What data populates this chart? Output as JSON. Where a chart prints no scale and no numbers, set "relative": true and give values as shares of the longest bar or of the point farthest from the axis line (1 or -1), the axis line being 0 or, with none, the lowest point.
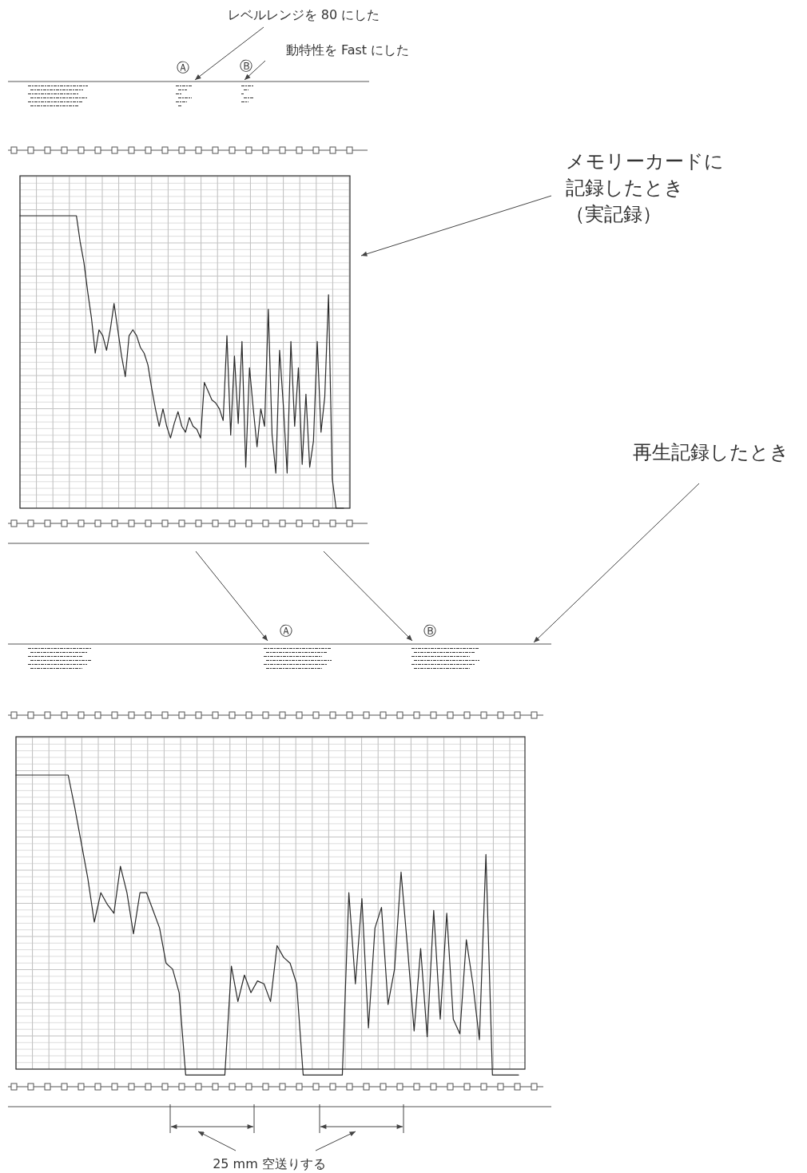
{
  "chart_data": [
    {
      "type": "line",
      "relative": true,
      "grid": true,
      "categories": [
        null,
        null,
        null,
        null,
        null,
        null,
        null,
        null,
        null,
        null,
        null,
        null,
        null,
        null,
        null,
        null,
        null,
        null,
        null,
        null,
        null,
        null,
        null,
        null,
        null,
        null,
        null,
        null,
        null,
        null,
        null,
        null,
        null,
        null,
        null,
        null,
        null,
        null,
        null,
        null,
        null,
        null,
        null,
        null,
        null,
        null,
        null,
        null,
        null,
        null,
        null,
        null,
        null,
        null,
        null,
        null,
        null,
        null,
        null,
        null,
        null,
        null,
        null,
        null,
        null,
        null,
        null,
        null,
        null,
        null,
        null,
        null,
        null,
        null,
        null,
        null,
        null,
        null,
        null,
        null,
        null,
        null,
        null,
        null,
        null,
        null,
        null
      ],
      "series": [
        {
          "color": "#2a2a2a",
          "values": [
            1,
            1,
            1,
            1,
            1,
            1,
            1,
            1,
            1,
            1,
            1,
            1,
            1,
            1,
            1,
            1,
            0.91,
            0.84,
            0.74,
            0.65,
            0.53,
            0.61,
            0.59,
            0.54,
            0.61,
            0.7,
            0.61,
            0.52,
            0.45,
            0.59,
            0.61,
            0.59,
            0.55,
            0.53,
            0.49,
            0.41,
            0.34,
            0.28,
            0.34,
            0.28,
            0.24,
            0.29,
            0.33,
            0.28,
            0.26,
            0.31,
            0.28,
            0.27,
            0.24,
            0.43,
            0.4,
            0.37,
            0.36,
            0.34,
            0.3,
            0.59,
            0.25,
            0.52,
            0.29,
            0.57,
            0.14,
            0.48,
            0.34,
            0.21,
            0.34,
            0.28,
            0.68,
            0.25,
            0.12,
            0.54,
            0.35,
            0.12,
            0.57,
            0.28,
            0.48,
            0.15,
            0.39,
            0.14,
            0.23,
            0.57,
            0.26,
            0.38,
            0.73,
            0.1,
            0,
            0,
            0
          ]
        }
      ],
      "annotations": [
        "レベルレンジを 80 にした",
        "動特性を Fast にした",
        "Ⓐ",
        "Ⓑ",
        "メモリーカードに記録したとき（実記録）"
      ]
    },
    {
      "type": "line",
      "relative": true,
      "grid": true,
      "categories": [
        null,
        null,
        null,
        null,
        null,
        null,
        null,
        null,
        null,
        null,
        null,
        null,
        null,
        null,
        null,
        null,
        null,
        null,
        null,
        null,
        null,
        null,
        null,
        null,
        null,
        null,
        null,
        null,
        null,
        null,
        null,
        null,
        null,
        null,
        null,
        null,
        null,
        null,
        null,
        null,
        null,
        null,
        null,
        null,
        null,
        null,
        null,
        null,
        null,
        null,
        null,
        null,
        null,
        null,
        null,
        null,
        null,
        null,
        null,
        null,
        null,
        null,
        null,
        null,
        null,
        null,
        null,
        null,
        null,
        null,
        null,
        null,
        null,
        null,
        null,
        null,
        null,
        null
      ],
      "series": [
        {
          "color": "#2a2a2a",
          "values": [
            1,
            1,
            1,
            1,
            1,
            1,
            1,
            1,
            1,
            0.89,
            0.77,
            0.65,
            0.5,
            0.6,
            0.56,
            0.53,
            0.69,
            0.6,
            0.46,
            0.6,
            0.6,
            0.54,
            0.48,
            0.36,
            0.34,
            0.26,
            -0.02,
            -0.02,
            -0.02,
            -0.02,
            -0.02,
            -0.02,
            -0.02,
            0.35,
            0.23,
            0.32,
            0.26,
            0.3,
            0.29,
            0.23,
            0.42,
            0.38,
            0.36,
            0.29,
            -0.02,
            -0.02,
            -0.02,
            -0.02,
            -0.02,
            -0.02,
            -0.02,
            0.6,
            0.29,
            0.58,
            0.14,
            0.48,
            0.55,
            0.22,
            0.34,
            0.67,
            0.41,
            0.13,
            0.41,
            0.11,
            0.54,
            0.17,
            0.53,
            0.17,
            0.12,
            0.44,
            0.29,
            0.1,
            0.73,
            -0.02,
            -0.02,
            -0.02,
            -0.02,
            -0.02
          ]
        }
      ],
      "annotations": [
        "Ⓐ",
        "Ⓑ",
        "再生記録したとき",
        "25 mm 空送りする"
      ]
    }
  ]
}
